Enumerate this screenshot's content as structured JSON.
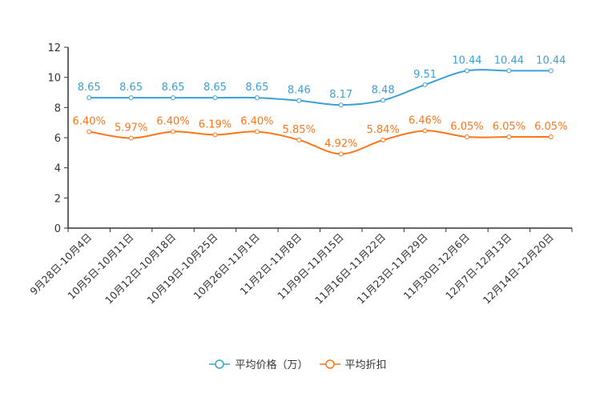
{
  "chart_data": {
    "type": "line",
    "categories": [
      "9月28日-10月4日",
      "10月5日-10月11日",
      "10月12日-10月18日",
      "10月19日-10月25日",
      "10月26日-11月1日",
      "11月2日-11月8日",
      "11月9日-11月15日",
      "11月16日-11月22日",
      "11月23日-11月29日",
      "11月30日-12月6日",
      "12月7日-12月13日",
      "12月14日-12月20日"
    ],
    "ylim": [
      0,
      12
    ],
    "yticks": [
      0,
      2,
      4,
      6,
      8,
      10,
      12
    ],
    "series": [
      {
        "name": "平均价格（万）",
        "color": "#3ba0d6",
        "values": [
          8.65,
          8.65,
          8.65,
          8.65,
          8.65,
          8.46,
          8.17,
          8.48,
          9.51,
          10.44,
          10.44,
          10.44
        ],
        "labels": [
          "8.65",
          "8.65",
          "8.65",
          "8.65",
          "8.65",
          "8.46",
          "8.17",
          "8.48",
          "9.51",
          "10.44",
          "10.44",
          "10.44"
        ]
      },
      {
        "name": "平均折扣",
        "color": "#ff7518",
        "values": [
          6.4,
          5.97,
          6.4,
          6.19,
          6.4,
          5.85,
          4.92,
          5.84,
          6.46,
          6.05,
          6.05,
          6.05
        ],
        "labels": [
          "6.40%",
          "5.97%",
          "6.40%",
          "6.19%",
          "6.40%",
          "5.85%",
          "4.92%",
          "5.84%",
          "6.46%",
          "6.05%",
          "6.05%",
          "6.05%"
        ]
      }
    ],
    "legend_position": "bottom"
  }
}
